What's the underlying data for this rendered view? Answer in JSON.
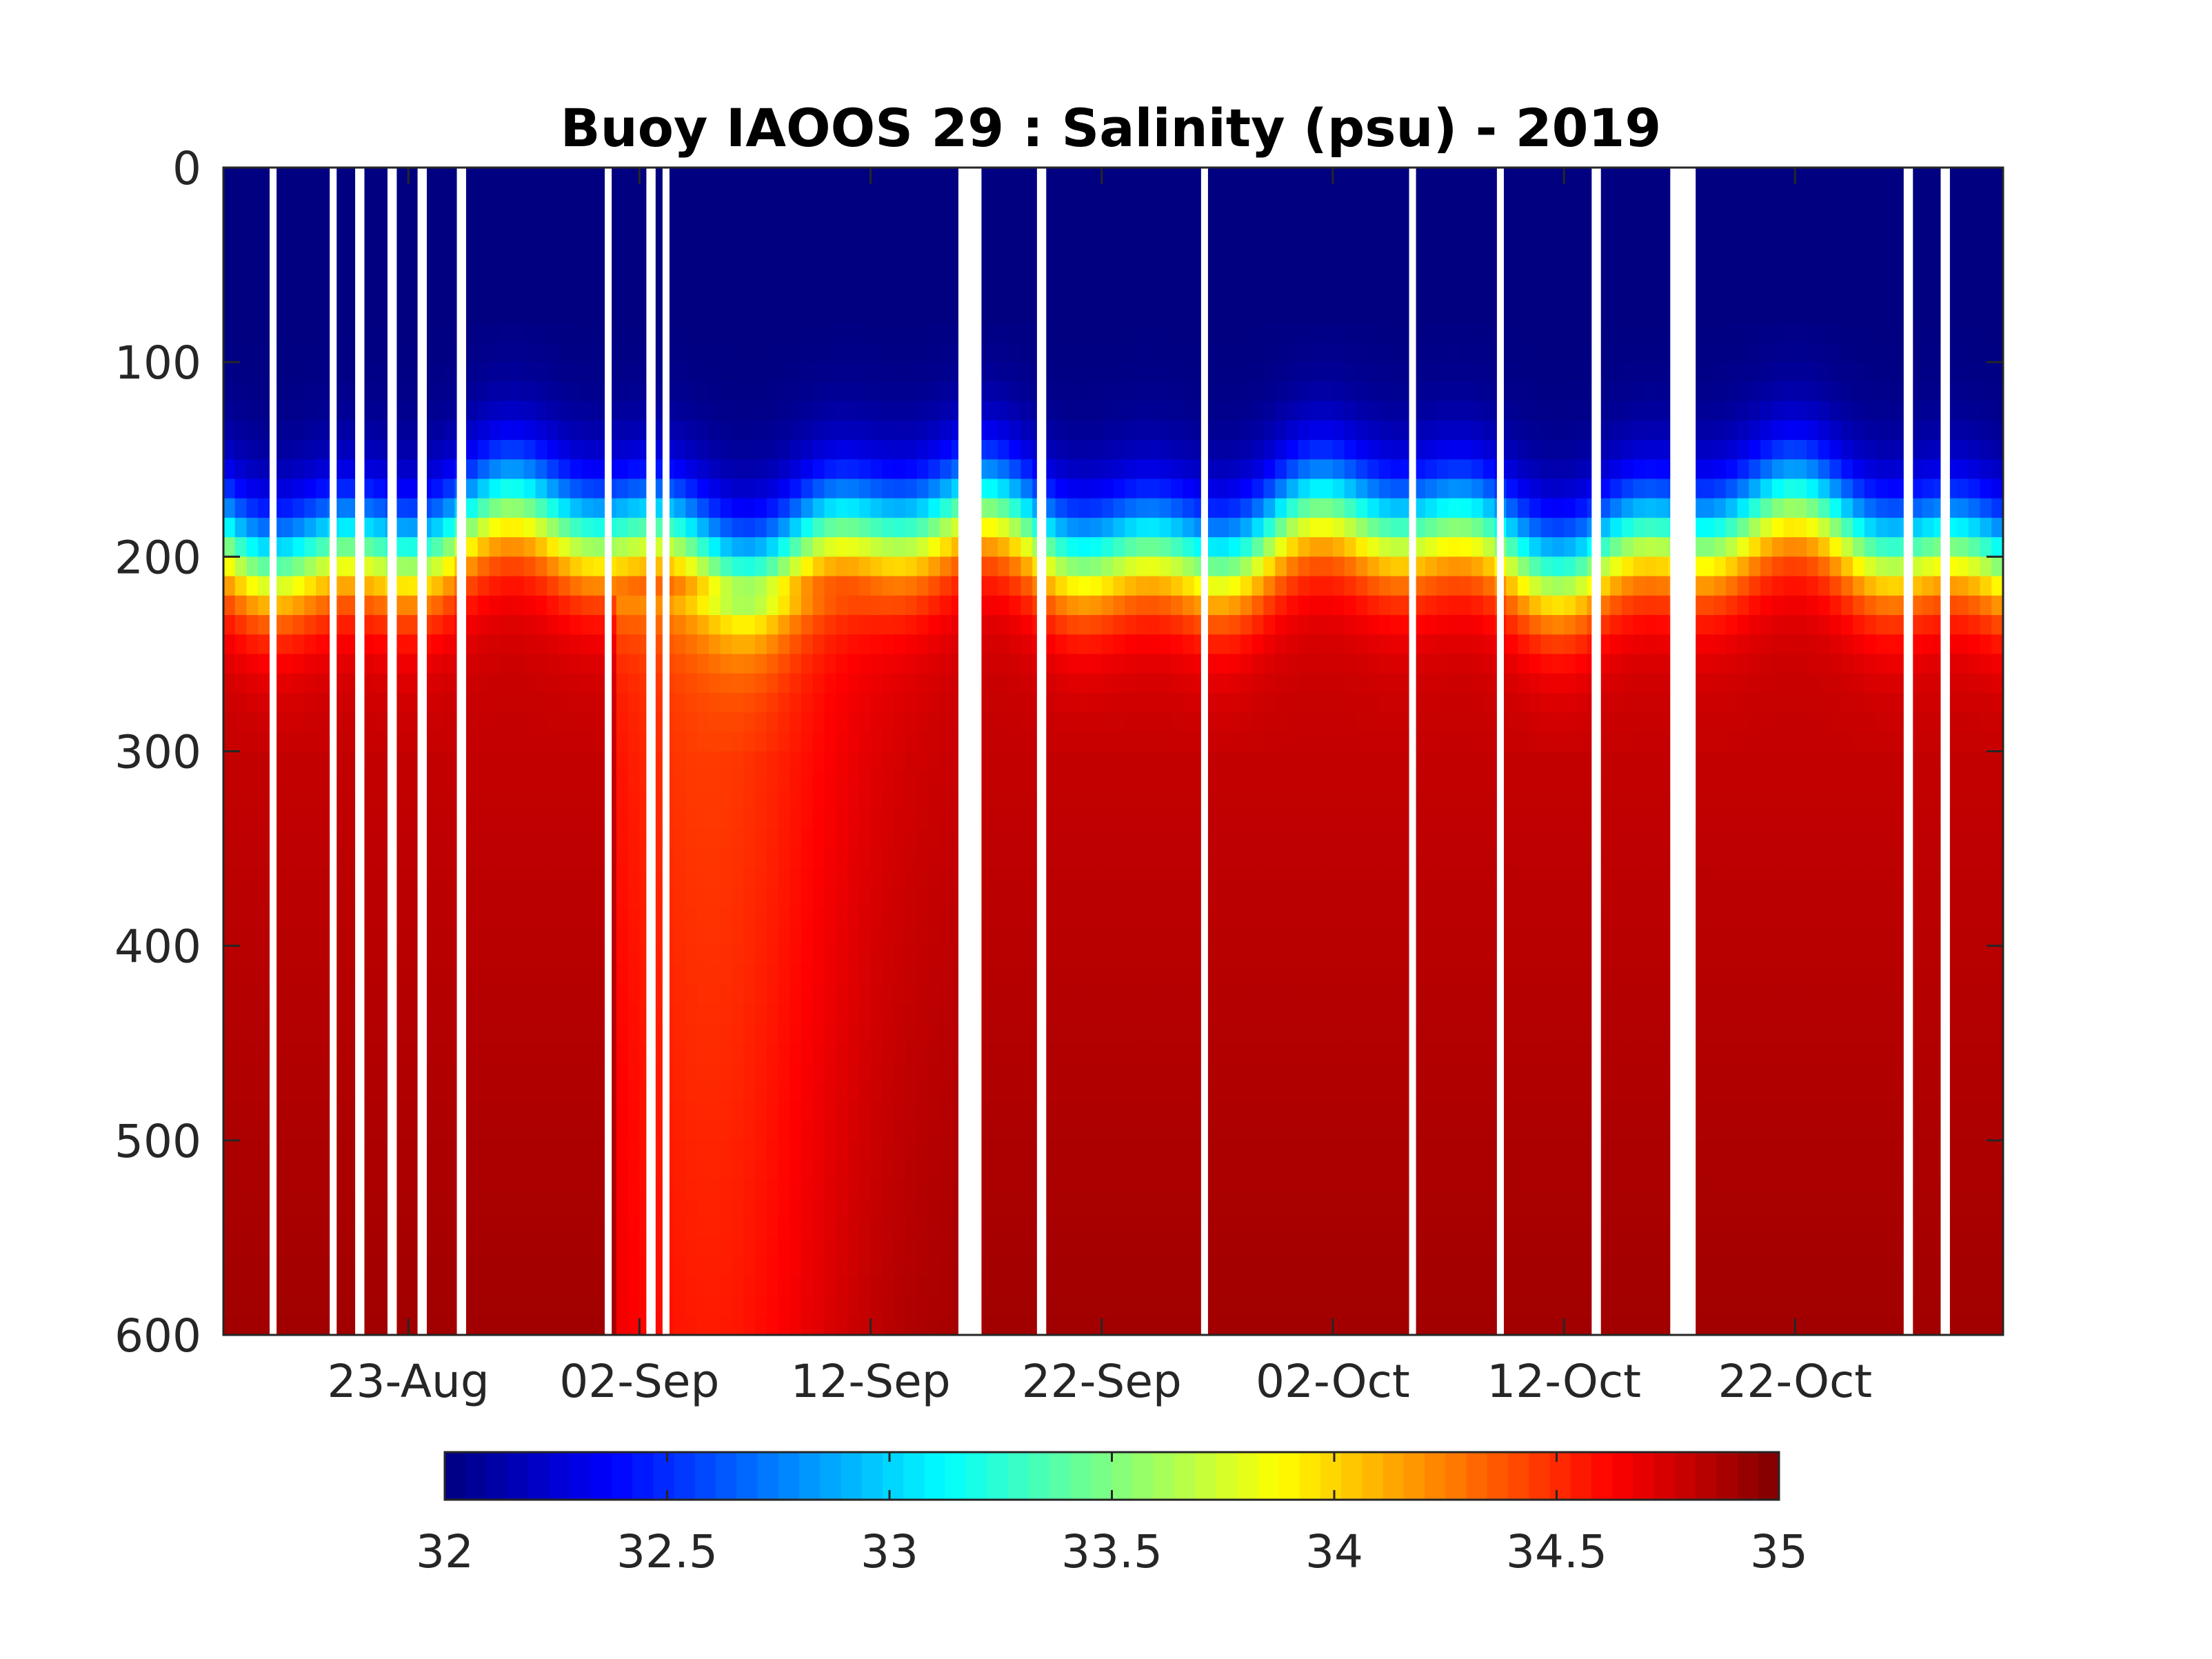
{
  "chart_data": {
    "type": "heatmap",
    "title": "Buoy IAOOS 29 : Salinity (psu) - 2019",
    "xlabel": "",
    "ylabel": "",
    "x_start": "2019-08-15",
    "x_end": "2019-10-31",
    "x_range_days": [
      0,
      77
    ],
    "y_range": [
      0,
      600
    ],
    "y_reversed": true,
    "xticks": [
      {
        "day": 8,
        "label": "23-Aug"
      },
      {
        "day": 18,
        "label": "02-Sep"
      },
      {
        "day": 28,
        "label": "12-Sep"
      },
      {
        "day": 38,
        "label": "22-Sep"
      },
      {
        "day": 48,
        "label": "02-Oct"
      },
      {
        "day": 58,
        "label": "12-Oct"
      },
      {
        "day": 68,
        "label": "22-Oct"
      }
    ],
    "yticks": [
      0,
      100,
      200,
      300,
      400,
      500,
      600
    ],
    "colorbar": {
      "min": 32,
      "max": 35,
      "colormap": "jet",
      "orientation": "horizontal",
      "location": "below",
      "ticks": [
        32,
        32.5,
        33,
        33.5,
        34,
        34.5,
        35
      ],
      "tick_labels": [
        "32",
        "32.5",
        "33",
        "33.5",
        "34",
        "34.5",
        "35"
      ]
    },
    "profile_model": {
      "surface_salinity": 32.0,
      "mixed_layer_base_m": 80,
      "halocline_center_m": 190,
      "halocline_width_m": 40,
      "deep_salinity_300m": 34.8,
      "deep_salinity_600m": 34.9
    },
    "data_gaps_days": [
      [
        2.0,
        2.3
      ],
      [
        4.6,
        4.9
      ],
      [
        5.7,
        6.1
      ],
      [
        7.1,
        7.5
      ],
      [
        8.4,
        8.8
      ],
      [
        10.1,
        10.5
      ],
      [
        16.5,
        16.8
      ],
      [
        18.3,
        18.7
      ],
      [
        19.0,
        19.3
      ],
      [
        31.8,
        32.8
      ],
      [
        35.2,
        35.6
      ],
      [
        42.3,
        42.6
      ],
      [
        51.3,
        51.6
      ],
      [
        55.1,
        55.4
      ],
      [
        59.2,
        59.6
      ],
      [
        62.6,
        63.7
      ],
      [
        72.7,
        73.1
      ],
      [
        74.3,
        74.7
      ]
    ]
  }
}
